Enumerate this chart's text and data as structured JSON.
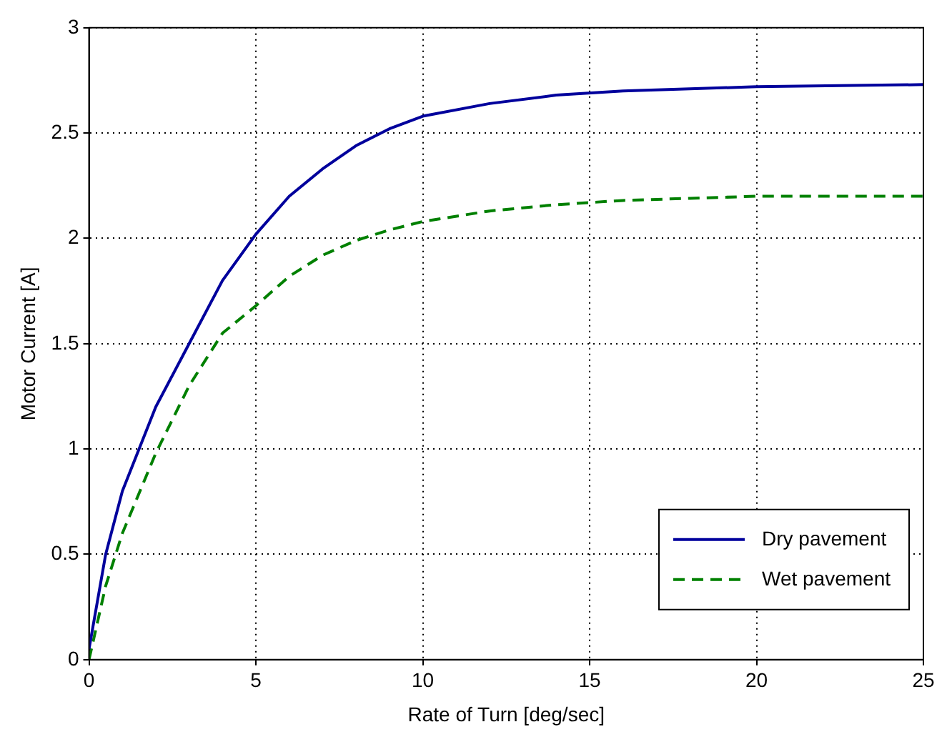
{
  "chart_data": {
    "type": "line",
    "xlabel": "Rate of Turn [deg/sec]",
    "ylabel": "Motor Current [A]",
    "xlim": [
      0,
      25
    ],
    "xticks": [
      0,
      5,
      10,
      15,
      20,
      25
    ],
    "ylim": [
      0,
      3
    ],
    "yticks": [
      0,
      0.5,
      1,
      1.5,
      2,
      2.5,
      3
    ],
    "grid": true,
    "legend": "bottom right",
    "marker": "none",
    "series": [
      {
        "name": "Dry pavement",
        "color": "#00009c",
        "line_style": "solid",
        "x": [
          0,
          0.5,
          1,
          2,
          3,
          4,
          5,
          6,
          7,
          8,
          9,
          10,
          12,
          14,
          16,
          18,
          20,
          25
        ],
        "values": [
          0.05,
          0.5,
          0.8,
          1.2,
          1.5,
          1.8,
          2.02,
          2.2,
          2.33,
          2.44,
          2.52,
          2.58,
          2.64,
          2.68,
          2.7,
          2.71,
          2.72,
          2.73
        ]
      },
      {
        "name": "Wet pavement",
        "color": "#008000",
        "line_style": "dashed",
        "x": [
          0,
          0.5,
          1,
          2,
          3,
          4,
          5,
          6,
          7,
          8,
          9,
          10,
          12,
          14,
          16,
          18,
          20,
          25
        ],
        "values": [
          0,
          0.35,
          0.6,
          0.98,
          1.3,
          1.55,
          1.68,
          1.82,
          1.92,
          1.99,
          2.04,
          2.08,
          2.13,
          2.16,
          2.18,
          2.19,
          2.2,
          2.2
        ]
      }
    ]
  }
}
